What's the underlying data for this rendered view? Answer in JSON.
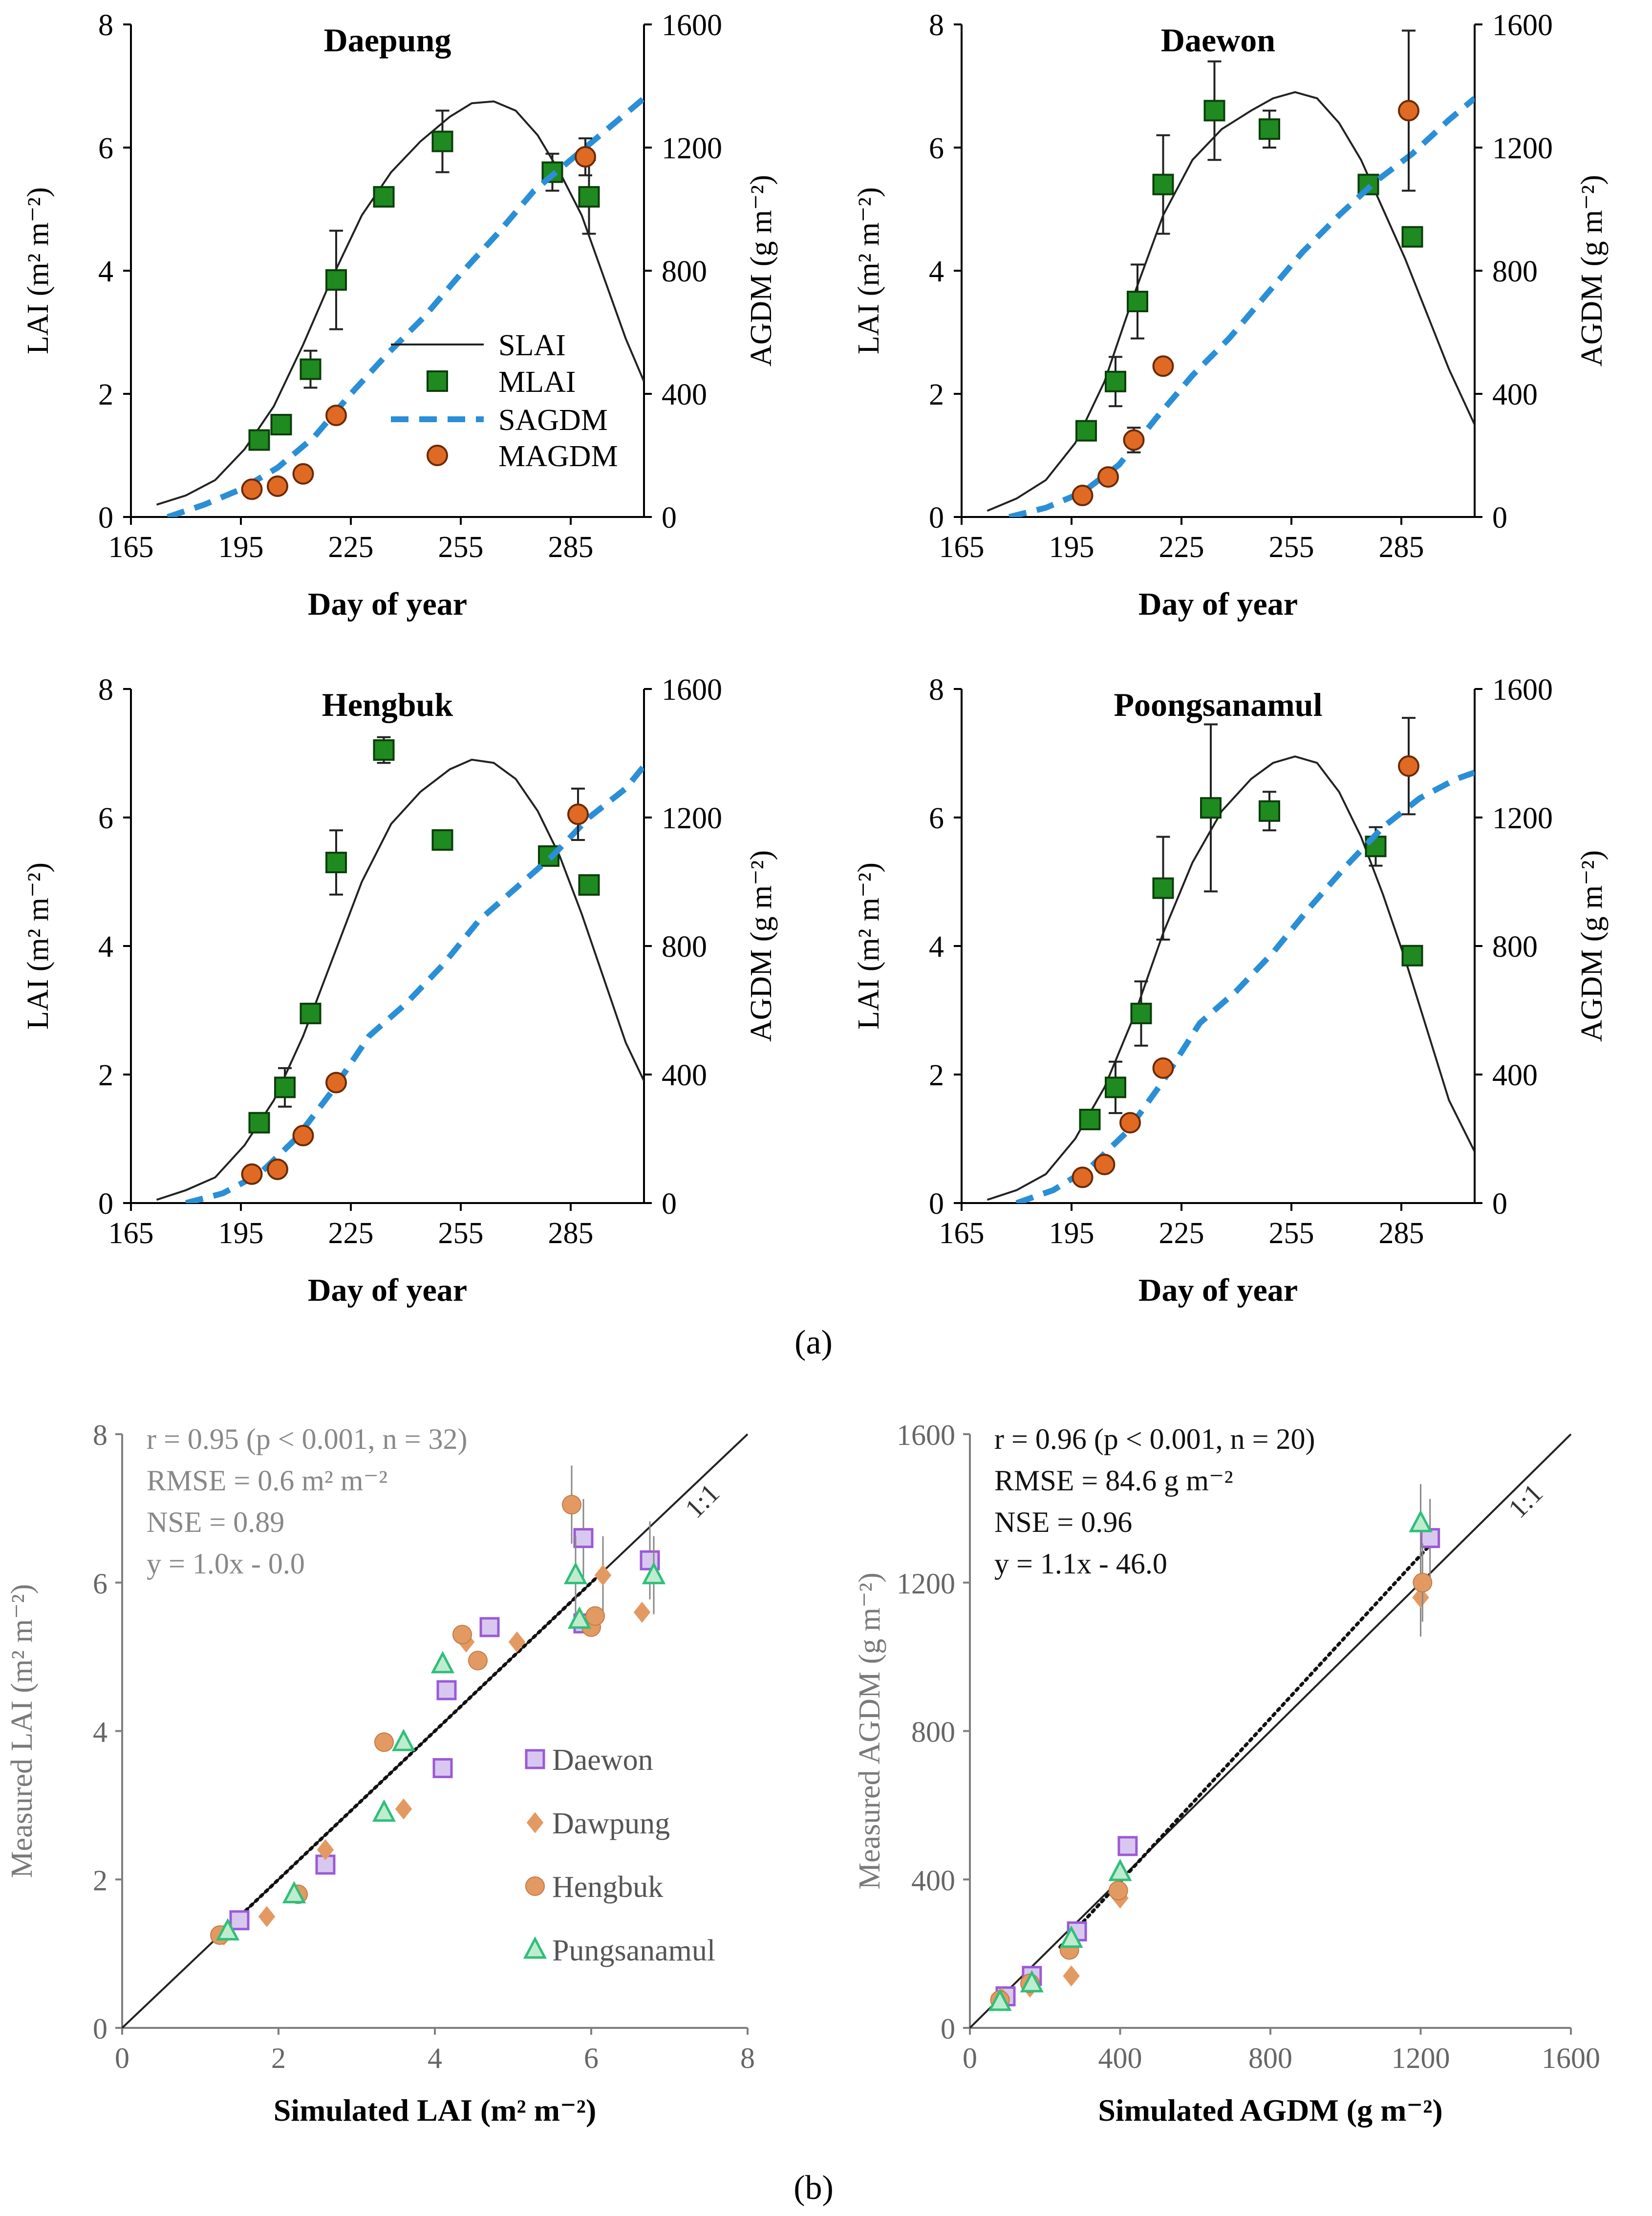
{
  "figure": {
    "label_a": "(a)",
    "label_b": "(b)"
  },
  "chart_data": [
    {
      "id": "daepung",
      "type": "line",
      "title": "Daepung",
      "xlabel": "Day of year",
      "ylabel_left": "LAI (m² m⁻²)",
      "ylabel_right": "AGDM (g m⁻²)",
      "xlim": [
        165,
        305
      ],
      "xticks": [
        165,
        195,
        225,
        255,
        285
      ],
      "ylim_left": [
        0,
        8
      ],
      "yticks_left": [
        0,
        2,
        4,
        6,
        8
      ],
      "ylim_right": [
        0,
        1600
      ],
      "yticks_right": [
        0,
        400,
        800,
        1200,
        1600
      ],
      "legend": {
        "position": "middle-right",
        "entries": [
          "SLAI",
          "MLAI",
          "SAGDM",
          "MAGDM"
        ]
      },
      "series": [
        {
          "name": "SLAI",
          "axis": "left",
          "style": "line",
          "x": [
            172,
            180,
            188,
            196,
            204,
            212,
            220,
            228,
            236,
            244,
            252,
            258,
            264,
            270,
            276,
            282,
            288,
            294,
            300,
            305
          ],
          "y": [
            0.2,
            0.35,
            0.6,
            1.1,
            1.8,
            2.8,
            3.9,
            4.9,
            5.6,
            6.1,
            6.5,
            6.72,
            6.75,
            6.6,
            6.2,
            5.6,
            4.9,
            3.9,
            2.9,
            2.2
          ]
        },
        {
          "name": "MLAI",
          "axis": "left",
          "style": "square",
          "x": [
            200,
            206,
            214,
            221,
            234,
            250,
            280,
            290
          ],
          "y": [
            1.25,
            1.5,
            2.4,
            3.85,
            5.2,
            6.1,
            5.6,
            5.2
          ],
          "err": [
            0.1,
            0.1,
            0.3,
            0.8,
            0.1,
            0.5,
            0.3,
            0.6
          ]
        },
        {
          "name": "SAGDM",
          "axis": "right",
          "style": "dash",
          "x": [
            175,
            185,
            195,
            205,
            215,
            225,
            235,
            245,
            255,
            265,
            275,
            285,
            295,
            305
          ],
          "y": [
            0,
            40,
            90,
            160,
            260,
            400,
            530,
            650,
            790,
            920,
            1060,
            1160,
            1260,
            1360
          ]
        },
        {
          "name": "MAGDM",
          "axis": "right",
          "style": "circle",
          "x": [
            198,
            205,
            212,
            221,
            289
          ],
          "y": [
            90,
            100,
            140,
            330,
            1170
          ],
          "err": [
            0,
            0,
            0,
            0,
            60
          ]
        }
      ]
    },
    {
      "id": "daewon",
      "type": "line",
      "title": "Daewon",
      "xlabel": "Day of year",
      "ylabel_left": "LAI (m² m⁻²)",
      "ylabel_right": "AGDM (g m⁻²)",
      "xlim": [
        165,
        305
      ],
      "xticks": [
        165,
        195,
        225,
        255,
        285
      ],
      "ylim_left": [
        0,
        8
      ],
      "yticks_left": [
        0,
        2,
        4,
        6,
        8
      ],
      "ylim_right": [
        0,
        1600
      ],
      "yticks_right": [
        0,
        400,
        800,
        1200,
        1600
      ],
      "series": [
        {
          "name": "SLAI",
          "axis": "left",
          "style": "line",
          "x": [
            172,
            180,
            188,
            196,
            204,
            212,
            220,
            228,
            236,
            244,
            250,
            256,
            262,
            268,
            274,
            280,
            286,
            292,
            298,
            305
          ],
          "y": [
            0.1,
            0.3,
            0.6,
            1.2,
            2.2,
            3.6,
            4.9,
            5.8,
            6.3,
            6.6,
            6.8,
            6.9,
            6.8,
            6.4,
            5.8,
            5.0,
            4.2,
            3.3,
            2.4,
            1.5
          ]
        },
        {
          "name": "MLAI",
          "axis": "left",
          "style": "square",
          "x": [
            199,
            207,
            213,
            220,
            234,
            249,
            276,
            288
          ],
          "y": [
            1.4,
            2.2,
            3.5,
            5.4,
            6.6,
            6.3,
            5.4,
            4.55
          ],
          "err": [
            0.1,
            0.4,
            0.6,
            0.8,
            0.8,
            0.3,
            0.1,
            0.1
          ]
        },
        {
          "name": "SAGDM",
          "axis": "right",
          "style": "dash",
          "x": [
            178,
            188,
            198,
            208,
            218,
            228,
            238,
            248,
            258,
            268,
            278,
            288,
            298,
            305
          ],
          "y": [
            0,
            30,
            80,
            170,
            320,
            460,
            580,
            720,
            860,
            980,
            1090,
            1180,
            1290,
            1360
          ]
        },
        {
          "name": "MAGDM",
          "axis": "right",
          "style": "circle",
          "x": [
            198,
            205,
            212,
            220,
            287
          ],
          "y": [
            70,
            130,
            250,
            490,
            1320
          ],
          "err": [
            0,
            0,
            40,
            0,
            260
          ]
        }
      ]
    },
    {
      "id": "hengbuk",
      "type": "line",
      "title": "Hengbuk",
      "xlabel": "Day of year",
      "ylabel_left": "LAI (m² m⁻²)",
      "ylabel_right": "AGDM (g m⁻²)",
      "xlim": [
        165,
        305
      ],
      "xticks": [
        165,
        195,
        225,
        255,
        285
      ],
      "ylim_left": [
        0,
        8
      ],
      "yticks_left": [
        0,
        2,
        4,
        6,
        8
      ],
      "ylim_right": [
        0,
        1600
      ],
      "yticks_right": [
        0,
        400,
        800,
        1200,
        1600
      ],
      "series": [
        {
          "name": "SLAI",
          "axis": "left",
          "style": "line",
          "x": [
            172,
            180,
            188,
            196,
            204,
            212,
            220,
            228,
            236,
            244,
            252,
            258,
            264,
            270,
            276,
            282,
            288,
            294,
            300,
            305
          ],
          "y": [
            0.05,
            0.2,
            0.4,
            0.9,
            1.6,
            2.6,
            3.8,
            5.0,
            5.9,
            6.4,
            6.75,
            6.9,
            6.85,
            6.6,
            6.1,
            5.4,
            4.5,
            3.5,
            2.5,
            1.9
          ]
        },
        {
          "name": "MLAI",
          "axis": "left",
          "style": "square",
          "x": [
            200,
            207,
            214,
            221,
            234,
            250,
            279,
            290
          ],
          "y": [
            1.25,
            1.8,
            2.95,
            5.3,
            7.05,
            5.65,
            5.4,
            4.95
          ],
          "err": [
            0.1,
            0.3,
            0.1,
            0.5,
            0.2,
            0.1,
            0.1,
            0.1
          ]
        },
        {
          "name": "SAGDM",
          "axis": "right",
          "style": "dash",
          "x": [
            180,
            190,
            200,
            210,
            220,
            230,
            240,
            250,
            260,
            270,
            280,
            290,
            300,
            305
          ],
          "y": [
            0,
            30,
            90,
            200,
            350,
            520,
            620,
            740,
            880,
            980,
            1080,
            1200,
            1290,
            1360
          ]
        },
        {
          "name": "MAGDM",
          "axis": "right",
          "style": "circle",
          "x": [
            198,
            205,
            212,
            221,
            287
          ],
          "y": [
            90,
            105,
            210,
            375,
            1210
          ],
          "err": [
            0,
            0,
            20,
            0,
            80
          ]
        }
      ]
    },
    {
      "id": "poongsanamul",
      "type": "line",
      "title": "Poongsanamul",
      "xlabel": "Day of year",
      "ylabel_left": "LAI (m² m⁻²)",
      "ylabel_right": "AGDM (g m⁻²)",
      "xlim": [
        165,
        305
      ],
      "xticks": [
        165,
        195,
        225,
        255,
        285
      ],
      "ylim_left": [
        0,
        8
      ],
      "yticks_left": [
        0,
        2,
        4,
        6,
        8
      ],
      "ylim_right": [
        0,
        1600
      ],
      "yticks_right": [
        0,
        400,
        800,
        1200,
        1600
      ],
      "series": [
        {
          "name": "SLAI",
          "axis": "left",
          "style": "line",
          "x": [
            172,
            180,
            188,
            196,
            204,
            212,
            220,
            228,
            236,
            244,
            250,
            256,
            262,
            268,
            274,
            280,
            286,
            292,
            298,
            305
          ],
          "y": [
            0.05,
            0.2,
            0.45,
            1.0,
            1.8,
            2.9,
            4.2,
            5.3,
            6.1,
            6.6,
            6.85,
            6.95,
            6.85,
            6.4,
            5.7,
            4.8,
            3.8,
            2.7,
            1.6,
            0.8
          ]
        },
        {
          "name": "MLAI",
          "axis": "left",
          "style": "square",
          "x": [
            200,
            207,
            214,
            220,
            233,
            249,
            278,
            288
          ],
          "y": [
            1.3,
            1.8,
            2.95,
            4.9,
            6.15,
            6.1,
            5.55,
            3.85
          ],
          "err": [
            0.1,
            0.4,
            0.5,
            0.8,
            1.3,
            0.3,
            0.3,
            0.1
          ]
        },
        {
          "name": "SAGDM",
          "axis": "right",
          "style": "dash",
          "x": [
            180,
            190,
            200,
            210,
            220,
            230,
            240,
            250,
            260,
            270,
            280,
            290,
            300,
            305
          ],
          "y": [
            0,
            40,
            110,
            220,
            380,
            560,
            660,
            780,
            920,
            1050,
            1170,
            1260,
            1320,
            1340
          ]
        },
        {
          "name": "MAGDM",
          "axis": "right",
          "style": "circle",
          "x": [
            198,
            204,
            211,
            220,
            287
          ],
          "y": [
            80,
            120,
            250,
            420,
            1360
          ],
          "err": [
            0,
            0,
            0,
            0,
            150
          ]
        }
      ]
    },
    {
      "id": "lai_scatter",
      "type": "scatter",
      "xlabel": "Simulated LAI (m² m⁻²)",
      "ylabel": "Measured LAI (m² m⁻²)",
      "xlim": [
        0,
        8
      ],
      "ylim": [
        0,
        8
      ],
      "xticks": [
        0,
        2,
        4,
        6,
        8
      ],
      "yticks": [
        0,
        2,
        4,
        6,
        8
      ],
      "one_to_one_label": "1:1",
      "stats": [
        "r = 0.95 (p < 0.001, n = 32)",
        "RMSE = 0.6 m² m⁻²",
        "NSE = 0.89",
        "y = 1.0x - 0.0"
      ],
      "legend": {
        "position": "bottom-right",
        "entries": [
          "Daewon",
          "Dawpung",
          "Hengbuk",
          "Pungsanamul"
        ]
      },
      "series": [
        {
          "name": "Daewon",
          "marker": "square",
          "x": [
            1.5,
            2.6,
            4.1,
            4.15,
            4.7,
            5.9,
            5.9,
            6.75
          ],
          "y": [
            1.45,
            2.2,
            3.5,
            4.55,
            5.4,
            5.45,
            6.6,
            6.3
          ]
        },
        {
          "name": "Dawpung",
          "marker": "diamond",
          "x": [
            1.3,
            1.85,
            2.6,
            3.6,
            4.4,
            5.05,
            6.15,
            6.65
          ],
          "y": [
            1.25,
            1.5,
            2.4,
            2.95,
            5.2,
            5.2,
            6.1,
            5.6
          ]
        },
        {
          "name": "Hengbuk",
          "marker": "circle",
          "x": [
            1.25,
            2.25,
            3.35,
            4.35,
            4.55,
            5.75,
            6.0,
            6.05
          ],
          "y": [
            1.25,
            1.8,
            3.85,
            5.3,
            4.95,
            7.05,
            5.4,
            5.55
          ]
        },
        {
          "name": "Pungsanamul",
          "marker": "triangle",
          "x": [
            1.35,
            2.2,
            3.35,
            3.6,
            4.1,
            5.85,
            5.8,
            6.8
          ],
          "y": [
            1.3,
            1.8,
            2.9,
            3.85,
            4.9,
            5.5,
            6.1,
            6.1
          ]
        }
      ]
    },
    {
      "id": "agdm_scatter",
      "type": "scatter",
      "xlabel": "Simulated AGDM (g m⁻²)",
      "ylabel": "Measured AGDM (g m⁻²)",
      "xlim": [
        0,
        1600
      ],
      "ylim": [
        0,
        1600
      ],
      "xticks": [
        0,
        400,
        800,
        1200,
        1600
      ],
      "yticks": [
        0,
        400,
        800,
        1200,
        1600
      ],
      "one_to_one_label": "1:1",
      "stats": [
        "r = 0.96 (p < 0.001, n = 20)",
        "RMSE = 84.6 g m⁻²",
        "NSE = 0.96",
        "y = 1.1x - 46.0"
      ],
      "series": [
        {
          "name": "Daewon",
          "marker": "square",
          "x": [
            95,
            165,
            285,
            420,
            1225
          ],
          "y": [
            85,
            140,
            260,
            490,
            1320
          ]
        },
        {
          "name": "Dawpung",
          "marker": "diamond",
          "x": [
            85,
            160,
            270,
            400,
            1200
          ],
          "y": [
            80,
            110,
            140,
            350,
            1160
          ]
        },
        {
          "name": "Hengbuk",
          "marker": "circle",
          "x": [
            80,
            160,
            265,
            395,
            1205
          ],
          "y": [
            75,
            120,
            210,
            370,
            1200
          ]
        },
        {
          "name": "Pungsanamul",
          "marker": "triangle",
          "x": [
            80,
            165,
            270,
            400,
            1200
          ],
          "y": [
            70,
            120,
            240,
            420,
            1360
          ]
        }
      ]
    }
  ]
}
